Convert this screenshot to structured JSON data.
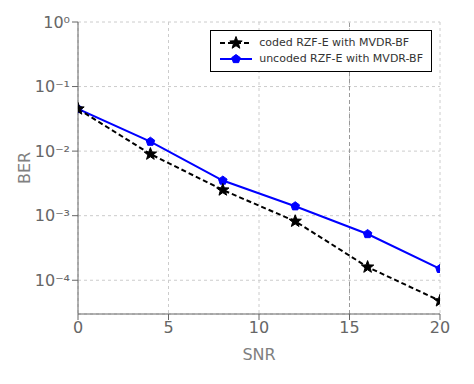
{
  "chart_data": {
    "type": "line",
    "xlabel": "SNR",
    "ylabel": "BER",
    "x": [
      0,
      4,
      8,
      12,
      16,
      20
    ],
    "series": [
      {
        "name": "uncoded RZF-E with MVDR-BF",
        "color": "#0000FF",
        "marker": "pentagon",
        "line_style": "solid",
        "values": [
          0.045,
          0.014,
          0.0035,
          0.0014,
          0.00052,
          0.00015
        ]
      },
      {
        "name": "coded RZF-E with MVDR-BF",
        "color": "#000000",
        "marker": "star",
        "line_style": "dashed",
        "values": [
          0.045,
          0.009,
          0.0025,
          0.00082,
          0.00016,
          4.8e-05
        ]
      }
    ],
    "xlim": [
      0,
      20
    ],
    "xticks": [
      0,
      5,
      10,
      15,
      20
    ],
    "ylim": [
      3e-05,
      1.0
    ],
    "yticks": [
      {
        "value": 0.0001,
        "label": "10⁻⁴"
      },
      {
        "value": 0.001,
        "label": "10⁻³"
      },
      {
        "value": 0.01,
        "label": "10⁻²"
      },
      {
        "value": 0.1,
        "label": "10⁻¹"
      },
      {
        "value": 1,
        "label": "10⁰"
      }
    ],
    "log": "y",
    "grid": true,
    "legend": "upper right",
    "annotations": [
      {
        "type": "vline",
        "x": 15
      }
    ]
  }
}
